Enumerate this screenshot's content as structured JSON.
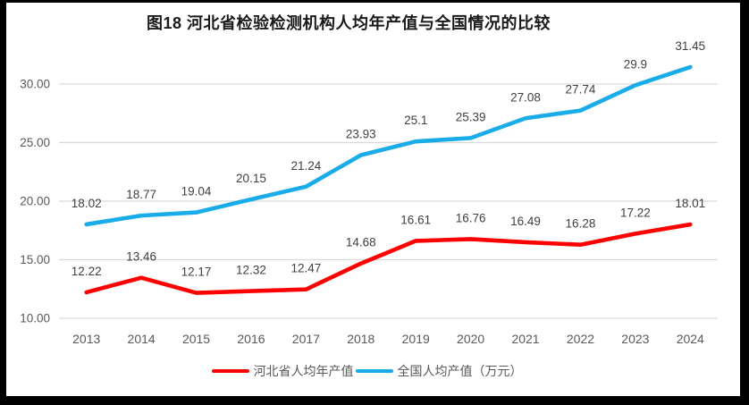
{
  "chart_data": {
    "type": "line",
    "title": "图18 河北省检验检测机构人均年产值与全国情况的比较",
    "categories": [
      "2013",
      "2014",
      "2015",
      "2016",
      "2017",
      "2018",
      "2019",
      "2020",
      "2021",
      "2022",
      "2023",
      "2024"
    ],
    "series": [
      {
        "name": "河北省人均年产值",
        "color": "#FF0000",
        "values": [
          12.22,
          13.46,
          12.17,
          12.32,
          12.47,
          14.68,
          16.61,
          16.76,
          16.49,
          16.28,
          17.22,
          18.01
        ],
        "labels": [
          "12.22",
          "13.46",
          "12.17",
          "12.32",
          "12.47",
          "14.68",
          "16.61",
          "16.76",
          "16.49",
          "16.28",
          "17.22",
          "18.01"
        ]
      },
      {
        "name": "全国人均产值（万元）",
        "color": "#19ACE8",
        "values": [
          18.02,
          18.77,
          19.04,
          20.15,
          21.24,
          23.93,
          25.1,
          25.39,
          27.08,
          27.74,
          29.9,
          31.45
        ],
        "labels": [
          "18.02",
          "18.77",
          "19.04",
          "20.15",
          "21.24",
          "23.93",
          "25.1",
          "25.39",
          "27.08",
          "27.74",
          "29.9",
          "31.45"
        ]
      }
    ],
    "y_ticks": [
      {
        "value": 30,
        "label": "30.00"
      },
      {
        "value": 25,
        "label": "25.00"
      },
      {
        "value": 20,
        "label": "20.00"
      },
      {
        "value": 15,
        "label": "15.00"
      },
      {
        "value": 10,
        "label": "10.00"
      }
    ],
    "ylim": [
      10,
      32.5
    ],
    "xlabel": "",
    "ylabel": "",
    "grid": true,
    "legend_position": "bottom",
    "colors": {
      "gridline": "#D9D9D9",
      "axis_text": "#595959",
      "data_label_text": "#404040",
      "title_text": "#1A1A1A",
      "frame": "#000000",
      "background": "#FFFFFF"
    }
  }
}
